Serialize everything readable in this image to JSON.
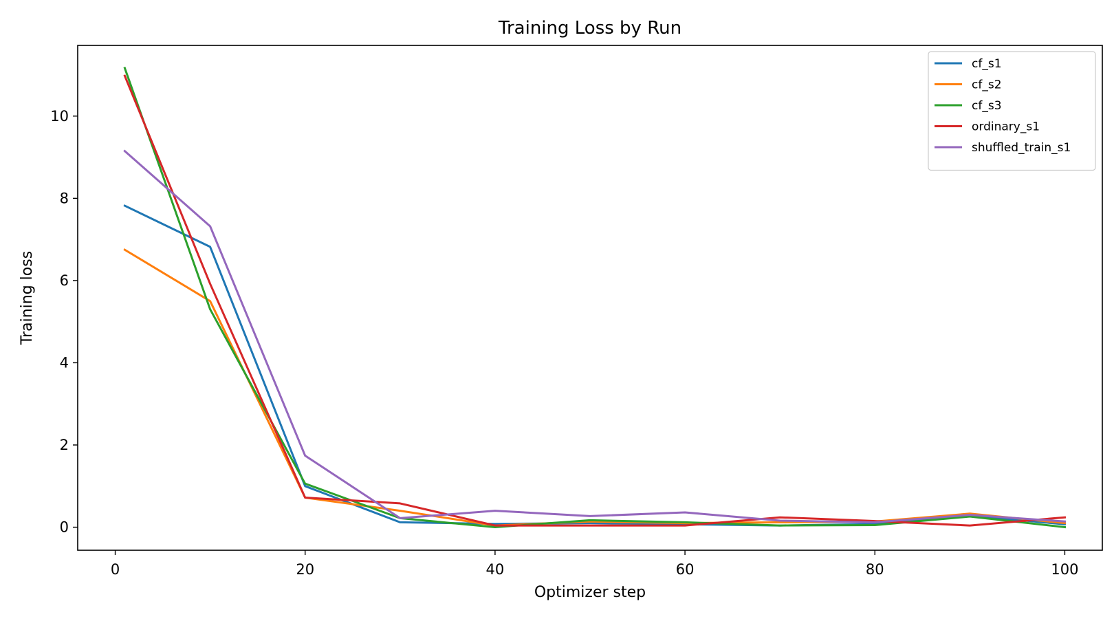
{
  "chart_data": {
    "type": "line",
    "title": "Training Loss by Run",
    "xlabel": "Optimizer step",
    "ylabel": "Training loss",
    "xlim": [
      -3.95,
      103.95
    ],
    "ylim": [
      -0.56,
      11.72
    ],
    "xticks": [
      0,
      20,
      40,
      60,
      80,
      100
    ],
    "yticks": [
      0,
      2,
      4,
      6,
      8,
      10
    ],
    "grid": false,
    "legend_position": "top-right",
    "x": [
      1,
      10,
      20,
      30,
      40,
      50,
      60,
      70,
      80,
      90,
      100
    ],
    "series": [
      {
        "name": "cf_s1",
        "color": "#1f77b4",
        "values": [
          7.82,
          6.82,
          1.0,
          0.12,
          0.08,
          0.1,
          0.07,
          0.04,
          0.08,
          0.28,
          0.07
        ]
      },
      {
        "name": "cf_s2",
        "color": "#ff7f0e",
        "values": [
          6.75,
          5.5,
          0.72,
          0.4,
          0.04,
          0.14,
          0.1,
          0.12,
          0.14,
          0.33,
          0.1
        ]
      },
      {
        "name": "cf_s3",
        "color": "#2ca02c",
        "values": [
          11.17,
          5.3,
          1.06,
          0.22,
          0.0,
          0.17,
          0.12,
          0.04,
          0.05,
          0.26,
          0.0
        ]
      },
      {
        "name": "ordinary_s1",
        "color": "#d62728",
        "values": [
          10.98,
          5.92,
          0.72,
          0.58,
          0.04,
          0.04,
          0.04,
          0.24,
          0.15,
          0.04,
          0.24
        ]
      },
      {
        "name": "shuffled_train_s1",
        "color": "#9467bd",
        "values": [
          9.15,
          7.32,
          1.74,
          0.22,
          0.4,
          0.27,
          0.36,
          0.16,
          0.12,
          0.3,
          0.14
        ]
      }
    ]
  }
}
